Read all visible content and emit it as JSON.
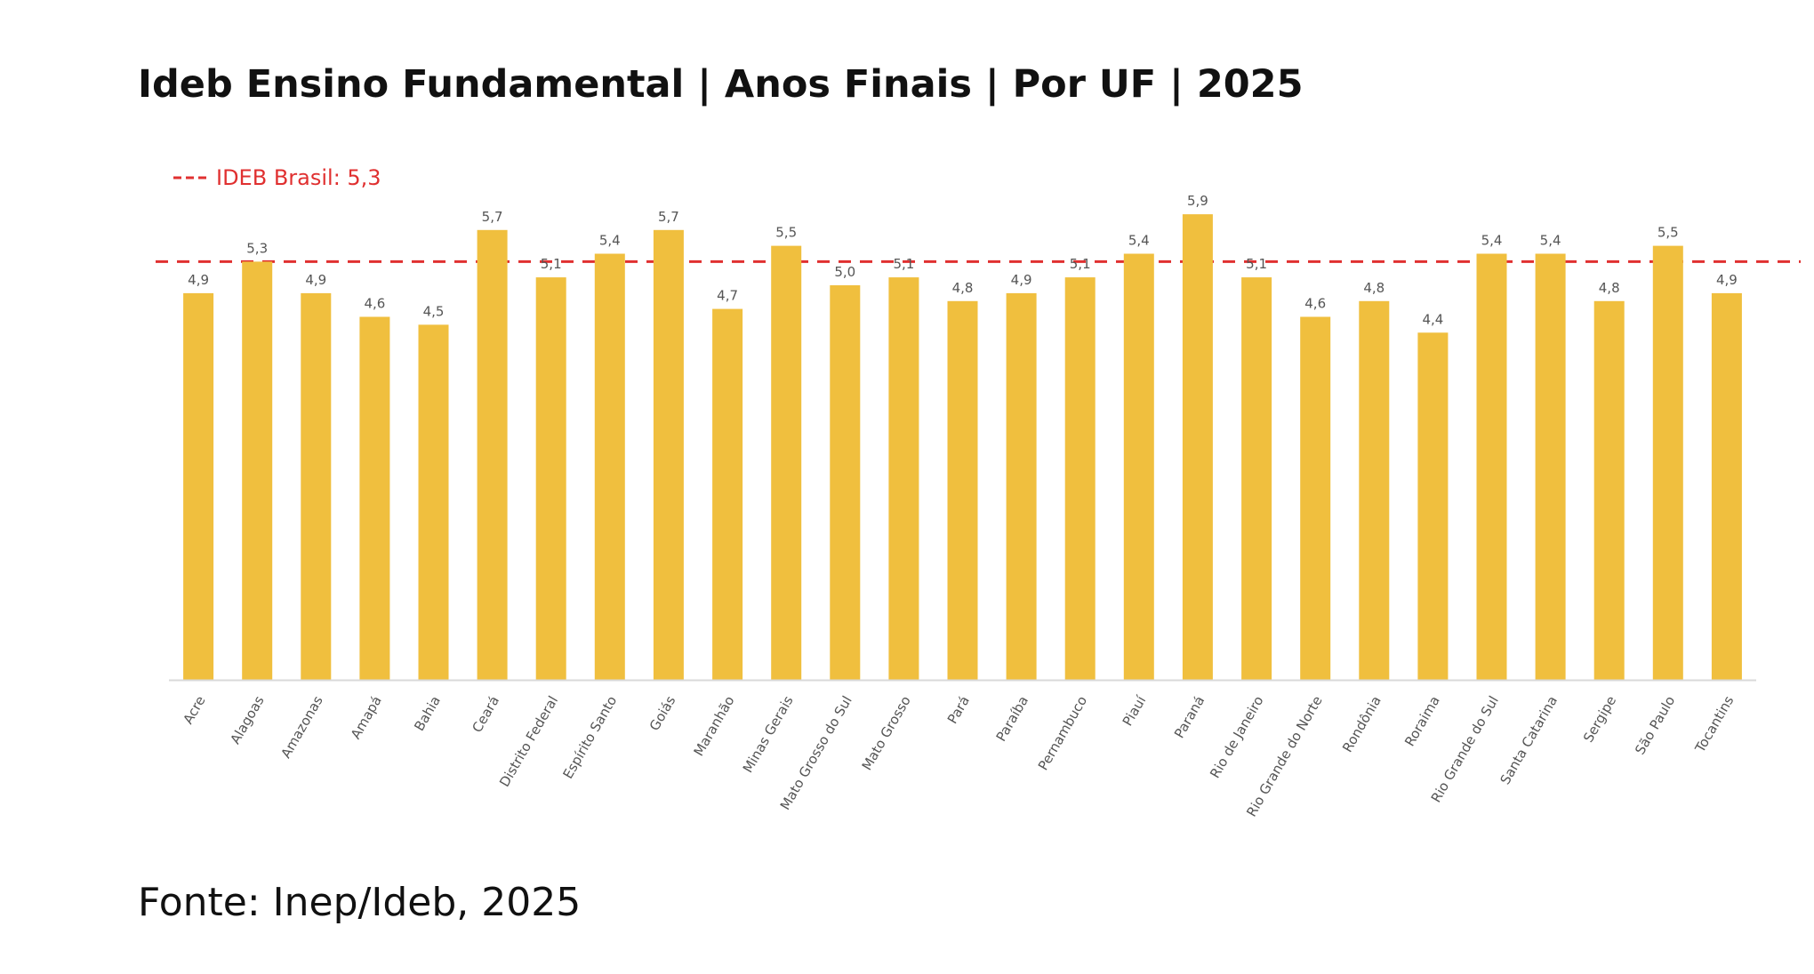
{
  "chart_data": {
    "type": "bar",
    "title": "Ideb Ensino Fundamental | Anos Finais | Por UF | 2025",
    "source": "Fonte: Inep/Ideb, 2025",
    "categories": [
      "Acre",
      "Alagoas",
      "Amazonas",
      "Amapá",
      "Bahia",
      "Ceará",
      "Distrito Federal",
      "Espírito Santo",
      "Goiás",
      "Maranhão",
      "Minas Gerais",
      "Mato Grosso do Sul",
      "Mato Grosso",
      "Pará",
      "Paraíba",
      "Pernambuco",
      "Piauí",
      "Paraná",
      "Rio de Janeiro",
      "Rio Grande do Norte",
      "Rondônia",
      "Roraima",
      "Rio Grande do Sul",
      "Santa Catarina",
      "Sergipe",
      "São Paulo",
      "Tocantins"
    ],
    "values": [
      4.9,
      5.3,
      4.9,
      4.6,
      4.5,
      5.7,
      5.1,
      5.4,
      5.7,
      4.7,
      5.5,
      5.0,
      5.1,
      4.8,
      4.9,
      5.1,
      5.4,
      5.9,
      5.1,
      4.6,
      4.8,
      4.4,
      5.4,
      5.4,
      4.8,
      5.5,
      4.9
    ],
    "value_labels": [
      "4,9",
      "5,3",
      "4,9",
      "4,6",
      "4,5",
      "5,7",
      "5,1",
      "5,4",
      "5,7",
      "4,7",
      "5,5",
      "5,0",
      "5,1",
      "4,8",
      "4,9",
      "5,1",
      "5,4",
      "5,9",
      "5,1",
      "4,6",
      "4,8",
      "4,4",
      "5,4",
      "5,4",
      "4,8",
      "5,5",
      "4,9"
    ],
    "reference_line": {
      "label": "IDEB Brasil: 5,3",
      "value": 5.3,
      "color": "#e03030",
      "style": "dashed"
    },
    "bar_color": "#f0bf3e",
    "ylim": [
      0,
      6.2
    ],
    "xlabel": "",
    "ylabel": "",
    "grid": false,
    "legend_position": "top-left"
  }
}
